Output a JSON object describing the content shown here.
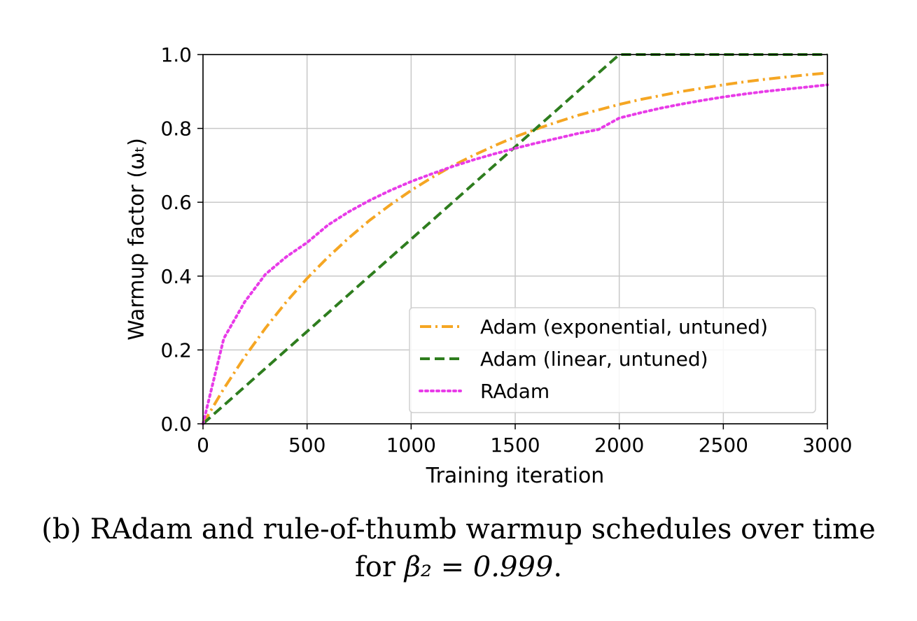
{
  "chart_data": {
    "type": "line",
    "xlabel": "Training iteration",
    "ylabel": "Warmup factor (ωₜ)",
    "xlim": [
      0,
      3000
    ],
    "ylim": [
      0,
      1.0
    ],
    "xticks": [
      0,
      500,
      1000,
      1500,
      2000,
      2500,
      3000
    ],
    "xtick_labels": [
      "0",
      "500",
      "1000",
      "1500",
      "2000",
      "2500",
      "3000"
    ],
    "yticks": [
      0.0,
      0.2,
      0.4,
      0.6,
      0.8,
      1.0
    ],
    "ytick_labels": [
      "0.0",
      "0.2",
      "0.4",
      "0.6",
      "0.8",
      "1.0"
    ],
    "grid": true,
    "legend_position": "lower-right",
    "x": [
      0,
      100,
      200,
      300,
      400,
      500,
      600,
      700,
      800,
      900,
      1000,
      1100,
      1200,
      1300,
      1400,
      1500,
      1600,
      1700,
      1800,
      1900,
      2000,
      2100,
      2200,
      2300,
      2400,
      2500,
      2600,
      2700,
      2800,
      2900,
      3000
    ],
    "series": [
      {
        "name": "Adam (exponential, untuned)",
        "color": "#f5a623",
        "style": "dashdot",
        "values": [
          0.0,
          0.095,
          0.181,
          0.259,
          0.33,
          0.394,
          0.451,
          0.503,
          0.551,
          0.593,
          0.632,
          0.667,
          0.699,
          0.727,
          0.753,
          0.777,
          0.798,
          0.817,
          0.835,
          0.85,
          0.865,
          0.878,
          0.889,
          0.9,
          0.909,
          0.918,
          0.926,
          0.933,
          0.939,
          0.945,
          0.95
        ]
      },
      {
        "name": "Adam (linear, untuned)",
        "color": "#2e7d1e",
        "style": "dashed",
        "values": [
          0.0,
          0.05,
          0.1,
          0.15,
          0.2,
          0.25,
          0.3,
          0.35,
          0.4,
          0.45,
          0.5,
          0.55,
          0.6,
          0.65,
          0.7,
          0.75,
          0.8,
          0.85,
          0.9,
          0.95,
          1.0,
          1.0,
          1.0,
          1.0,
          1.0,
          1.0,
          1.0,
          1.0,
          1.0,
          1.0,
          1.0
        ]
      },
      {
        "name": "RAdam",
        "color": "#e83be8",
        "style": "dotted",
        "values": [
          0.0,
          0.231,
          0.33,
          0.405,
          0.452,
          0.491,
          0.538,
          0.574,
          0.605,
          0.632,
          0.656,
          0.677,
          0.697,
          0.715,
          0.731,
          0.746,
          0.76,
          0.773,
          0.786,
          0.797,
          0.828,
          0.842,
          0.855,
          0.866,
          0.876,
          0.885,
          0.893,
          0.9,
          0.906,
          0.912,
          0.918
        ]
      }
    ]
  },
  "caption": {
    "line1": "(b) RAdam and rule-of-thumb warmup schedules over time",
    "line2_prefix": "for ",
    "line2_math": "β₂ = 0.999",
    "line2_suffix": "."
  }
}
